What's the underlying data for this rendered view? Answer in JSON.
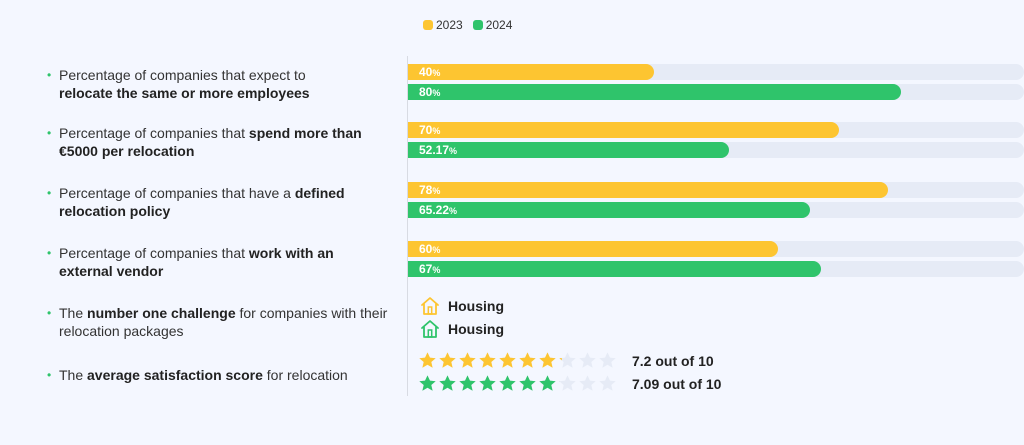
{
  "legend": [
    {
      "label": "2023",
      "color": "#fdc531"
    },
    {
      "label": "2024",
      "color": "#2fc46b"
    }
  ],
  "rows": [
    {
      "plain": "Percentage of companies that expect to",
      "bold": "relocate the same or more employees"
    },
    {
      "plain": "Percentage of companies that",
      "bold": "spend more than €5000 per relocation"
    },
    {
      "plain": "Percentage of companies that have a",
      "bold": "defined relocation policy"
    },
    {
      "plain": "Percentage of companies that",
      "bold": "work with an external vendor"
    },
    {
      "pre": "The",
      "bold": "number one challenge",
      "post": "for companies with their relocation packages"
    },
    {
      "pre": "The",
      "bold": "average satisfaction score",
      "post": "for relocation"
    }
  ],
  "chart_data": {
    "type": "bar",
    "orientation": "horizontal",
    "categories": [
      "Percentage of companies that expect to relocate the same or more employees",
      "Percentage of companies that spend more than €5000 per relocation",
      "Percentage of companies that have a defined relocation policy",
      "Percentage of companies that work with an external vendor"
    ],
    "series": [
      {
        "name": "2023",
        "color": "#fdc531",
        "values": [
          40,
          70,
          78,
          60
        ],
        "labels": [
          "40",
          "70",
          "78",
          "60"
        ]
      },
      {
        "name": "2024",
        "color": "#2fc46b",
        "values": [
          80,
          52.17,
          65.22,
          67
        ],
        "labels": [
          "80",
          "52.17",
          "65.22",
          "67"
        ]
      }
    ],
    "unit": "%",
    "xlim": [
      0,
      100
    ]
  },
  "challenge": [
    {
      "label": "Housing",
      "color": "#fdc531"
    },
    {
      "label": "Housing",
      "color": "#2fc46b"
    }
  ],
  "satisfaction": [
    {
      "score": 7.2,
      "max": 10,
      "text": "7.2 out of 10",
      "color": "#fdc531"
    },
    {
      "score": 7.09,
      "max": 10,
      "text": "7.09 out of 10",
      "color": "#2fc46b"
    }
  ]
}
